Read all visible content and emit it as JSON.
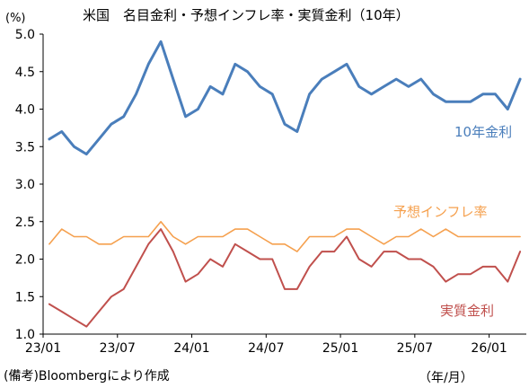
{
  "title": "米国　名目金利・予想インフレ率・実質金利（10年）",
  "unit_label": "(%)",
  "note": "(備考)Bloombergにより作成",
  "x_unit_label": "（年/月）",
  "chart_data": {
    "type": "line",
    "title": "米国　名目金利・予想インフレ率・実質金利（10年）",
    "xlabel": "（年/月）",
    "ylabel": "(%)",
    "ylim": [
      1.0,
      5.0
    ],
    "yticks": [
      "1.0",
      "1.5",
      "2.0",
      "2.5",
      "3.0",
      "3.5",
      "4.0",
      "4.5",
      "5.0"
    ],
    "xlim": [
      "2023-01",
      "2026-04"
    ],
    "xticks": [
      "23/01",
      "23/07",
      "24/01",
      "24/07",
      "25/01",
      "25/07",
      "26/01"
    ],
    "grid": false,
    "legend": "inline labels",
    "series": [
      {
        "name": "10年金利",
        "color": "#4a7ebb",
        "x": [
          "2023-01",
          "2023-02",
          "2023-03",
          "2023-04",
          "2023-05",
          "2023-06",
          "2023-07",
          "2023-08",
          "2023-09",
          "2023-10",
          "2023-11",
          "2023-12",
          "2024-01",
          "2024-02",
          "2024-03",
          "2024-04",
          "2024-05",
          "2024-06",
          "2024-07",
          "2024-08",
          "2024-09",
          "2024-10",
          "2024-11",
          "2024-12",
          "2025-01",
          "2025-02",
          "2025-03",
          "2025-04",
          "2025-05",
          "2025-06",
          "2025-07",
          "2025-08",
          "2025-09",
          "2025-10",
          "2025-11",
          "2025-12",
          "2026-01",
          "2026-02",
          "2026-03"
        ],
        "values": [
          3.6,
          3.7,
          3.5,
          3.4,
          3.6,
          3.8,
          3.9,
          4.2,
          4.6,
          4.9,
          4.4,
          3.9,
          4.0,
          4.3,
          4.2,
          4.6,
          4.5,
          4.3,
          4.2,
          3.8,
          3.7,
          4.2,
          4.4,
          4.5,
          4.6,
          4.3,
          4.2,
          4.3,
          4.4,
          4.3,
          4.4,
          4.2,
          4.1,
          4.1,
          4.1,
          4.2,
          4.2,
          4.0,
          4.4
        ]
      },
      {
        "name": "予想インフレ率",
        "color": "#f5a04e",
        "x": [
          "2023-01",
          "2023-02",
          "2023-03",
          "2023-04",
          "2023-05",
          "2023-06",
          "2023-07",
          "2023-08",
          "2023-09",
          "2023-10",
          "2023-11",
          "2023-12",
          "2024-01",
          "2024-02",
          "2024-03",
          "2024-04",
          "2024-05",
          "2024-06",
          "2024-07",
          "2024-08",
          "2024-09",
          "2024-10",
          "2024-11",
          "2024-12",
          "2025-01",
          "2025-02",
          "2025-03",
          "2025-04",
          "2025-05",
          "2025-06",
          "2025-07",
          "2025-08",
          "2025-09",
          "2025-10",
          "2025-11",
          "2025-12",
          "2026-01",
          "2026-02",
          "2026-03"
        ],
        "values": [
          2.2,
          2.4,
          2.3,
          2.3,
          2.2,
          2.2,
          2.3,
          2.3,
          2.3,
          2.5,
          2.3,
          2.2,
          2.3,
          2.3,
          2.3,
          2.4,
          2.4,
          2.3,
          2.2,
          2.2,
          2.1,
          2.3,
          2.3,
          2.3,
          2.4,
          2.4,
          2.3,
          2.2,
          2.3,
          2.3,
          2.4,
          2.3,
          2.4,
          2.3,
          2.3,
          2.3,
          2.3,
          2.3,
          2.3
        ]
      },
      {
        "name": "実質金利",
        "color": "#c0504d",
        "x": [
          "2023-01",
          "2023-02",
          "2023-03",
          "2023-04",
          "2023-05",
          "2023-06",
          "2023-07",
          "2023-08",
          "2023-09",
          "2023-10",
          "2023-11",
          "2023-12",
          "2024-01",
          "2024-02",
          "2024-03",
          "2024-04",
          "2024-05",
          "2024-06",
          "2024-07",
          "2024-08",
          "2024-09",
          "2024-10",
          "2024-11",
          "2024-12",
          "2025-01",
          "2025-02",
          "2025-03",
          "2025-04",
          "2025-05",
          "2025-06",
          "2025-07",
          "2025-08",
          "2025-09",
          "2025-10",
          "2025-11",
          "2025-12",
          "2026-01",
          "2026-02",
          "2026-03"
        ],
        "values": [
          1.4,
          1.3,
          1.2,
          1.1,
          1.3,
          1.5,
          1.6,
          1.9,
          2.2,
          2.4,
          2.1,
          1.7,
          1.8,
          2.0,
          1.9,
          2.2,
          2.1,
          2.0,
          2.0,
          1.6,
          1.6,
          1.9,
          2.1,
          2.1,
          2.3,
          2.0,
          1.9,
          2.1,
          2.1,
          2.0,
          2.0,
          1.9,
          1.7,
          1.8,
          1.8,
          1.9,
          1.9,
          1.7,
          2.1
        ]
      }
    ]
  }
}
